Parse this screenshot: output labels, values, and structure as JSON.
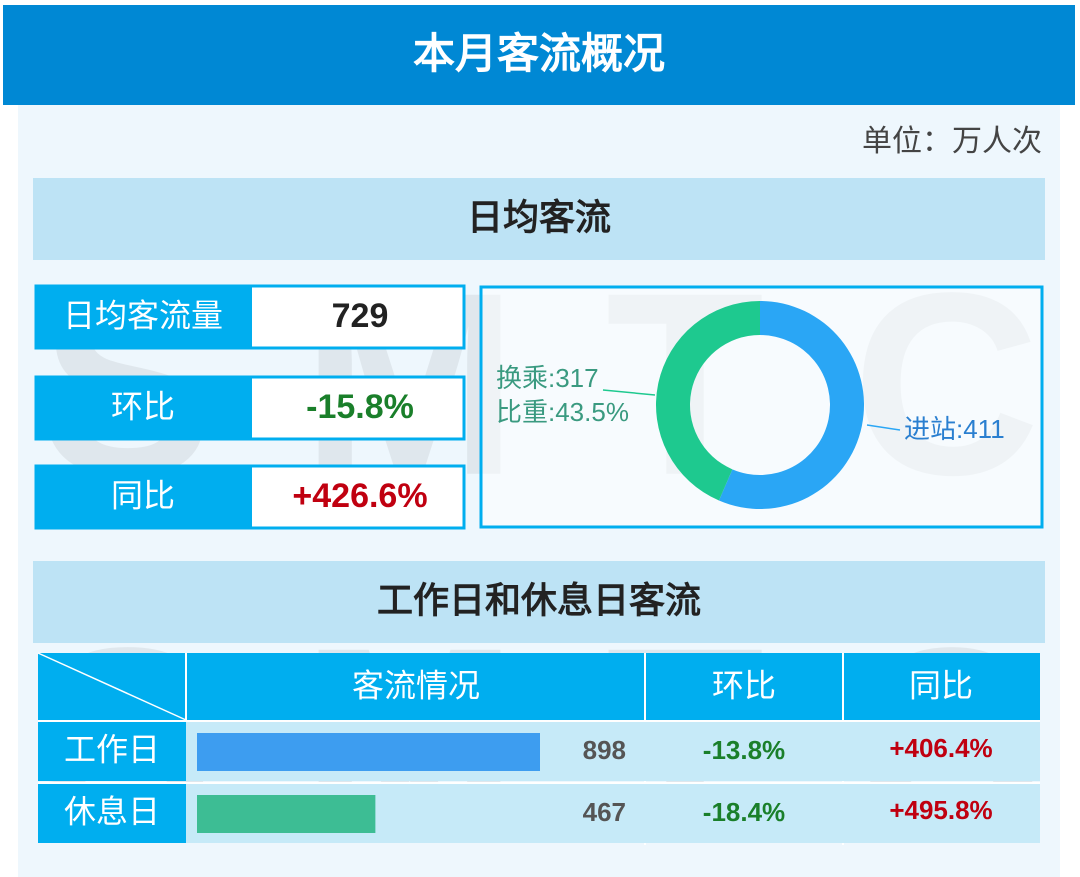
{
  "header": {
    "title": "本月客流概况",
    "unit": "单位：万人次"
  },
  "watermark": "SMTC",
  "daily": {
    "title": "日均客流",
    "stats": [
      {
        "label": "日均客流量",
        "value": "729"
      },
      {
        "label": "环比",
        "value": "-15.8%"
      },
      {
        "label": "同比",
        "value": "+426.6%"
      }
    ],
    "donut": {
      "type": "pie",
      "segments": [
        {
          "label": "进站:411",
          "value": 411,
          "color": "#2aa6f5"
        },
        {
          "label": "换乘:317",
          "value": 317,
          "color": "#1ec98f"
        }
      ],
      "share_label": "比重:43.5%"
    }
  },
  "daytype": {
    "title": "工作日和休息日客流",
    "columns": [
      "客流情况",
      "环比",
      "同比"
    ],
    "rows": [
      {
        "name": "工作日",
        "value": 898,
        "mom": "-13.8%",
        "yoy": "+406.4%",
        "color": "#3d9df0"
      },
      {
        "name": "休息日",
        "value": 467,
        "mom": "-18.4%",
        "yoy": "+495.8%",
        "color": "#3dbd94"
      }
    ]
  }
}
